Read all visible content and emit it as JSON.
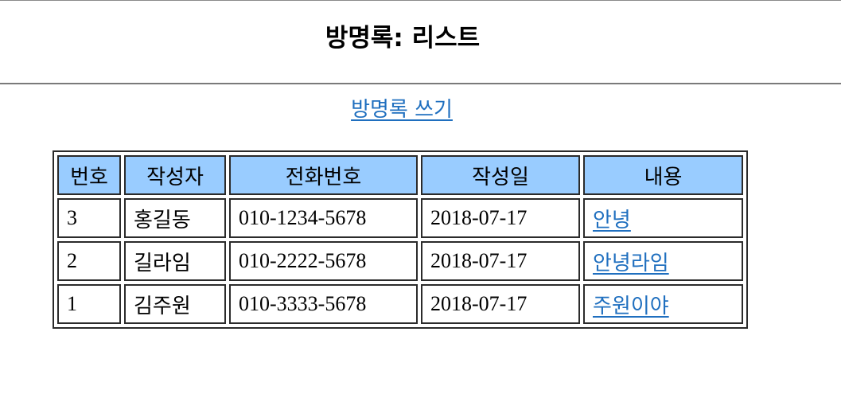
{
  "page": {
    "title": "방명록: 리스트",
    "write_link_label": "방명록 쓰기"
  },
  "table": {
    "headers": [
      "번호",
      "작성자",
      "전화번호",
      "작성일",
      "내용"
    ],
    "header_bg_color": "#99ccff",
    "link_color": "#1f6fbf",
    "rows": [
      {
        "num": "3",
        "writer": "홍길동",
        "phone": "010-1234-5678",
        "date": "2018-07-17",
        "content": "안녕"
      },
      {
        "num": "2",
        "writer": "길라임",
        "phone": "010-2222-5678",
        "date": "2018-07-17",
        "content": "안녕라임"
      },
      {
        "num": "1",
        "writer": "김주원",
        "phone": "010-3333-5678",
        "date": "2018-07-17",
        "content": "주원이야"
      }
    ]
  }
}
